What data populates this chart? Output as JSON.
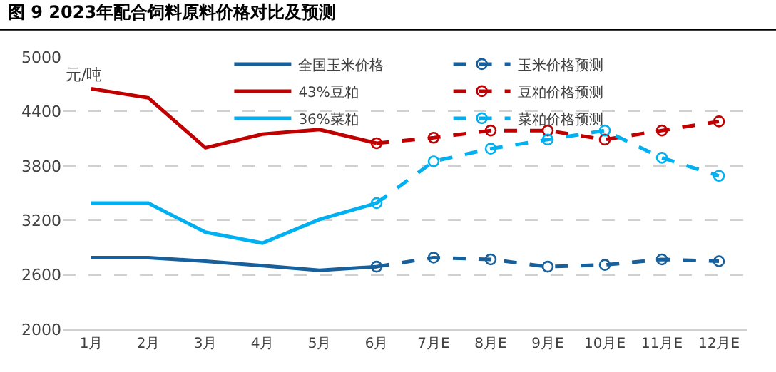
{
  "chart_data": {
    "type": "line",
    "title": "图 9 2023年配合饲料原料价格对比及预测",
    "ylabel": "元/吨",
    "categories": [
      "1月",
      "2月",
      "3月",
      "4月",
      "5月",
      "6月",
      "7月E",
      "8月E",
      "9月E",
      "10月E",
      "11月E",
      "12月E"
    ],
    "series": [
      {
        "name": "全国玉米价格",
        "color": "#17609c",
        "marker": "none",
        "line_style": "solid",
        "values": [
          2790,
          2790,
          2750,
          2700,
          2650,
          2690,
          null,
          null,
          null,
          null,
          null,
          null
        ]
      },
      {
        "name": "玉米价格预测",
        "color": "#17609c",
        "marker": "circle",
        "line_style": "dashed",
        "values": [
          null,
          null,
          null,
          null,
          null,
          2690,
          2790,
          2770,
          2690,
          2710,
          2770,
          2750
        ]
      },
      {
        "name": "43%豆粕",
        "color": "#c00000",
        "marker": "none",
        "line_style": "solid",
        "values": [
          4650,
          4550,
          4000,
          4150,
          4200,
          4050,
          null,
          null,
          null,
          null,
          null,
          null
        ]
      },
      {
        "name": "豆粕价格预测",
        "color": "#c00000",
        "marker": "circle",
        "line_style": "dashed",
        "values": [
          null,
          null,
          null,
          null,
          null,
          4050,
          4110,
          4190,
          4190,
          4090,
          4190,
          4290
        ]
      },
      {
        "name": "36%菜粕",
        "color": "#00b0f0",
        "marker": "none",
        "line_style": "solid",
        "values": [
          3390,
          3390,
          3070,
          2950,
          3210,
          3390,
          null,
          null,
          null,
          null,
          null,
          null
        ]
      },
      {
        "name": "菜粕价格预测",
        "color": "#00b0f0",
        "marker": "circle",
        "line_style": "dashed",
        "values": [
          null,
          null,
          null,
          null,
          null,
          3390,
          3850,
          3990,
          4090,
          4190,
          3890,
          3690
        ]
      }
    ],
    "ylim": [
      2000,
      5000
    ],
    "yticks": [
      2000,
      2600,
      3200,
      3800,
      4400,
      5000
    ],
    "grid": "y",
    "legend": "top"
  }
}
